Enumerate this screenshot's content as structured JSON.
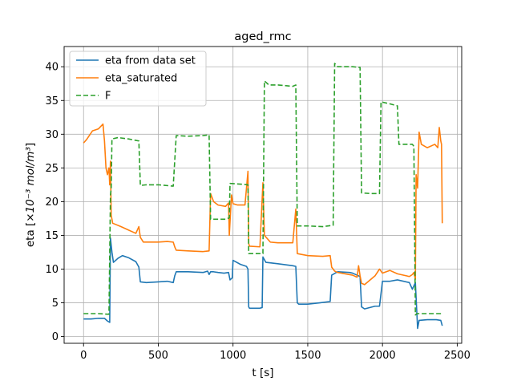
{
  "chart_data": {
    "type": "line",
    "title": "aged_rmc",
    "xlabel": "t [s]",
    "ylabel_prefix": "eta   [",
    "ylabel_math": "×10⁻³ mol/m³",
    "ylabel_suffix": "]",
    "xlim": [
      -130,
      2530
    ],
    "ylim": [
      -1.0,
      43.0
    ],
    "xticks": [
      0,
      500,
      1000,
      1500,
      2000,
      2500
    ],
    "xtick_labels": [
      "0",
      "500",
      "1000",
      "1500",
      "2000",
      "2500"
    ],
    "yticks": [
      0,
      5,
      10,
      15,
      20,
      25,
      30,
      35,
      40
    ],
    "ytick_labels": [
      "0",
      "5",
      "10",
      "15",
      "20",
      "25",
      "30",
      "35",
      "40"
    ],
    "grid": true,
    "legend_position": "top-left",
    "series": [
      {
        "name": "eta from data set",
        "color": "#1f77b4",
        "dash": "solid",
        "points": [
          [
            0,
            2.6
          ],
          [
            50,
            2.6
          ],
          [
            100,
            2.7
          ],
          [
            140,
            2.7
          ],
          [
            160,
            2.3
          ],
          [
            175,
            2.1
          ],
          [
            180,
            14.6
          ],
          [
            190,
            12.5
          ],
          [
            200,
            11.0
          ],
          [
            230,
            11.6
          ],
          [
            260,
            12.0
          ],
          [
            300,
            11.7
          ],
          [
            350,
            11.1
          ],
          [
            370,
            10.3
          ],
          [
            380,
            8.1
          ],
          [
            420,
            8.0
          ],
          [
            500,
            8.1
          ],
          [
            560,
            8.2
          ],
          [
            600,
            8.0
          ],
          [
            610,
            9.0
          ],
          [
            620,
            9.6
          ],
          [
            700,
            9.6
          ],
          [
            800,
            9.5
          ],
          [
            830,
            9.7
          ],
          [
            840,
            9.2
          ],
          [
            850,
            9.6
          ],
          [
            870,
            9.6
          ],
          [
            900,
            9.5
          ],
          [
            940,
            9.4
          ],
          [
            970,
            9.5
          ],
          [
            980,
            8.4
          ],
          [
            995,
            8.7
          ],
          [
            1000,
            11.3
          ],
          [
            1050,
            10.7
          ],
          [
            1090,
            10.4
          ],
          [
            1100,
            10.0
          ],
          [
            1105,
            4.4
          ],
          [
            1110,
            4.2
          ],
          [
            1180,
            4.2
          ],
          [
            1195,
            4.3
          ],
          [
            1200,
            11.8
          ],
          [
            1220,
            11.0
          ],
          [
            1300,
            10.8
          ],
          [
            1400,
            10.5
          ],
          [
            1420,
            10.4
          ],
          [
            1430,
            5.0
          ],
          [
            1440,
            4.8
          ],
          [
            1500,
            4.8
          ],
          [
            1580,
            5.0
          ],
          [
            1650,
            5.2
          ],
          [
            1660,
            9.1
          ],
          [
            1700,
            9.6
          ],
          [
            1780,
            9.5
          ],
          [
            1800,
            9.4
          ],
          [
            1830,
            9.1
          ],
          [
            1850,
            8.9
          ],
          [
            1860,
            4.4
          ],
          [
            1880,
            4.1
          ],
          [
            1950,
            4.5
          ],
          [
            1980,
            4.5
          ],
          [
            2000,
            8.2
          ],
          [
            2050,
            8.2
          ],
          [
            2100,
            8.4
          ],
          [
            2180,
            8.0
          ],
          [
            2200,
            7.0
          ],
          [
            2220,
            8.0
          ],
          [
            2235,
            1.2
          ],
          [
            2245,
            2.4
          ],
          [
            2300,
            2.5
          ],
          [
            2360,
            2.5
          ],
          [
            2390,
            2.4
          ],
          [
            2400,
            1.6
          ]
        ]
      },
      {
        "name": "eta_saturated",
        "color": "#ff7f0e",
        "dash": "solid",
        "points": [
          [
            0,
            28.7
          ],
          [
            20,
            29.2
          ],
          [
            60,
            30.5
          ],
          [
            100,
            30.8
          ],
          [
            130,
            31.5
          ],
          [
            140,
            29.0
          ],
          [
            150,
            25.0
          ],
          [
            160,
            24.0
          ],
          [
            170,
            25.0
          ],
          [
            175,
            22.5
          ],
          [
            180,
            26.0
          ],
          [
            185,
            18.0
          ],
          [
            195,
            16.8
          ],
          [
            250,
            16.3
          ],
          [
            300,
            15.8
          ],
          [
            350,
            15.3
          ],
          [
            370,
            16.3
          ],
          [
            380,
            14.7
          ],
          [
            400,
            14.0
          ],
          [
            500,
            14.0
          ],
          [
            560,
            14.1
          ],
          [
            600,
            14.0
          ],
          [
            610,
            13.3
          ],
          [
            620,
            12.8
          ],
          [
            700,
            12.7
          ],
          [
            800,
            12.6
          ],
          [
            840,
            12.7
          ],
          [
            850,
            21.2
          ],
          [
            870,
            20.0
          ],
          [
            900,
            19.5
          ],
          [
            950,
            19.3
          ],
          [
            970,
            19.8
          ],
          [
            975,
            15.0
          ],
          [
            990,
            21.0
          ],
          [
            1000,
            19.7
          ],
          [
            1030,
            19.5
          ],
          [
            1080,
            19.5
          ],
          [
            1100,
            24.5
          ],
          [
            1105,
            13.8
          ],
          [
            1110,
            13.4
          ],
          [
            1180,
            13.3
          ],
          [
            1200,
            22.8
          ],
          [
            1210,
            15.0
          ],
          [
            1250,
            14.0
          ],
          [
            1300,
            13.9
          ],
          [
            1400,
            13.9
          ],
          [
            1420,
            18.9
          ],
          [
            1430,
            12.3
          ],
          [
            1500,
            12.0
          ],
          [
            1600,
            11.9
          ],
          [
            1650,
            12.0
          ],
          [
            1660,
            10.3
          ],
          [
            1680,
            9.7
          ],
          [
            1700,
            9.5
          ],
          [
            1800,
            9.1
          ],
          [
            1830,
            8.8
          ],
          [
            1840,
            10.5
          ],
          [
            1850,
            9.0
          ],
          [
            1860,
            7.9
          ],
          [
            1880,
            7.7
          ],
          [
            1950,
            9.0
          ],
          [
            1980,
            10.0
          ],
          [
            2000,
            9.4
          ],
          [
            2050,
            9.8
          ],
          [
            2100,
            9.3
          ],
          [
            2180,
            8.9
          ],
          [
            2200,
            9.2
          ],
          [
            2210,
            9.5
          ],
          [
            2220,
            8.5
          ],
          [
            2225,
            24.0
          ],
          [
            2235,
            22.0
          ],
          [
            2245,
            30.3
          ],
          [
            2260,
            28.5
          ],
          [
            2300,
            28.0
          ],
          [
            2350,
            28.5
          ],
          [
            2370,
            28.0
          ],
          [
            2380,
            31.0
          ],
          [
            2390,
            29.0
          ],
          [
            2395,
            28.5
          ],
          [
            2400,
            16.8
          ]
        ]
      },
      {
        "name": "F",
        "color": "#2ca02c",
        "dash": "dashed",
        "points": [
          [
            0,
            3.4
          ],
          [
            100,
            3.4
          ],
          [
            170,
            3.3
          ],
          [
            180,
            21.0
          ],
          [
            185,
            22.0
          ],
          [
            190,
            29.3
          ],
          [
            230,
            29.5
          ],
          [
            300,
            29.3
          ],
          [
            370,
            29.0
          ],
          [
            380,
            22.4
          ],
          [
            420,
            22.5
          ],
          [
            500,
            22.5
          ],
          [
            600,
            22.3
          ],
          [
            620,
            29.8
          ],
          [
            700,
            29.7
          ],
          [
            800,
            29.8
          ],
          [
            840,
            29.9
          ],
          [
            850,
            17.4
          ],
          [
            950,
            17.4
          ],
          [
            975,
            17.6
          ],
          [
            980,
            22.7
          ],
          [
            1050,
            22.6
          ],
          [
            1100,
            22.5
          ],
          [
            1105,
            12.3
          ],
          [
            1200,
            12.3
          ],
          [
            1210,
            37.9
          ],
          [
            1240,
            37.3
          ],
          [
            1300,
            37.3
          ],
          [
            1400,
            37.1
          ],
          [
            1420,
            37.3
          ],
          [
            1430,
            16.4
          ],
          [
            1500,
            16.4
          ],
          [
            1600,
            16.3
          ],
          [
            1670,
            16.5
          ],
          [
            1680,
            40.5
          ],
          [
            1700,
            40.0
          ],
          [
            1800,
            40.0
          ],
          [
            1850,
            39.9
          ],
          [
            1860,
            21.3
          ],
          [
            1920,
            21.2
          ],
          [
            1980,
            21.2
          ],
          [
            1990,
            34.8
          ],
          [
            2050,
            34.5
          ],
          [
            2100,
            34.2
          ],
          [
            2110,
            28.5
          ],
          [
            2200,
            28.5
          ],
          [
            2210,
            28.2
          ],
          [
            2220,
            3.2
          ],
          [
            2230,
            3.4
          ],
          [
            2300,
            3.4
          ],
          [
            2400,
            3.4
          ]
        ]
      }
    ]
  }
}
